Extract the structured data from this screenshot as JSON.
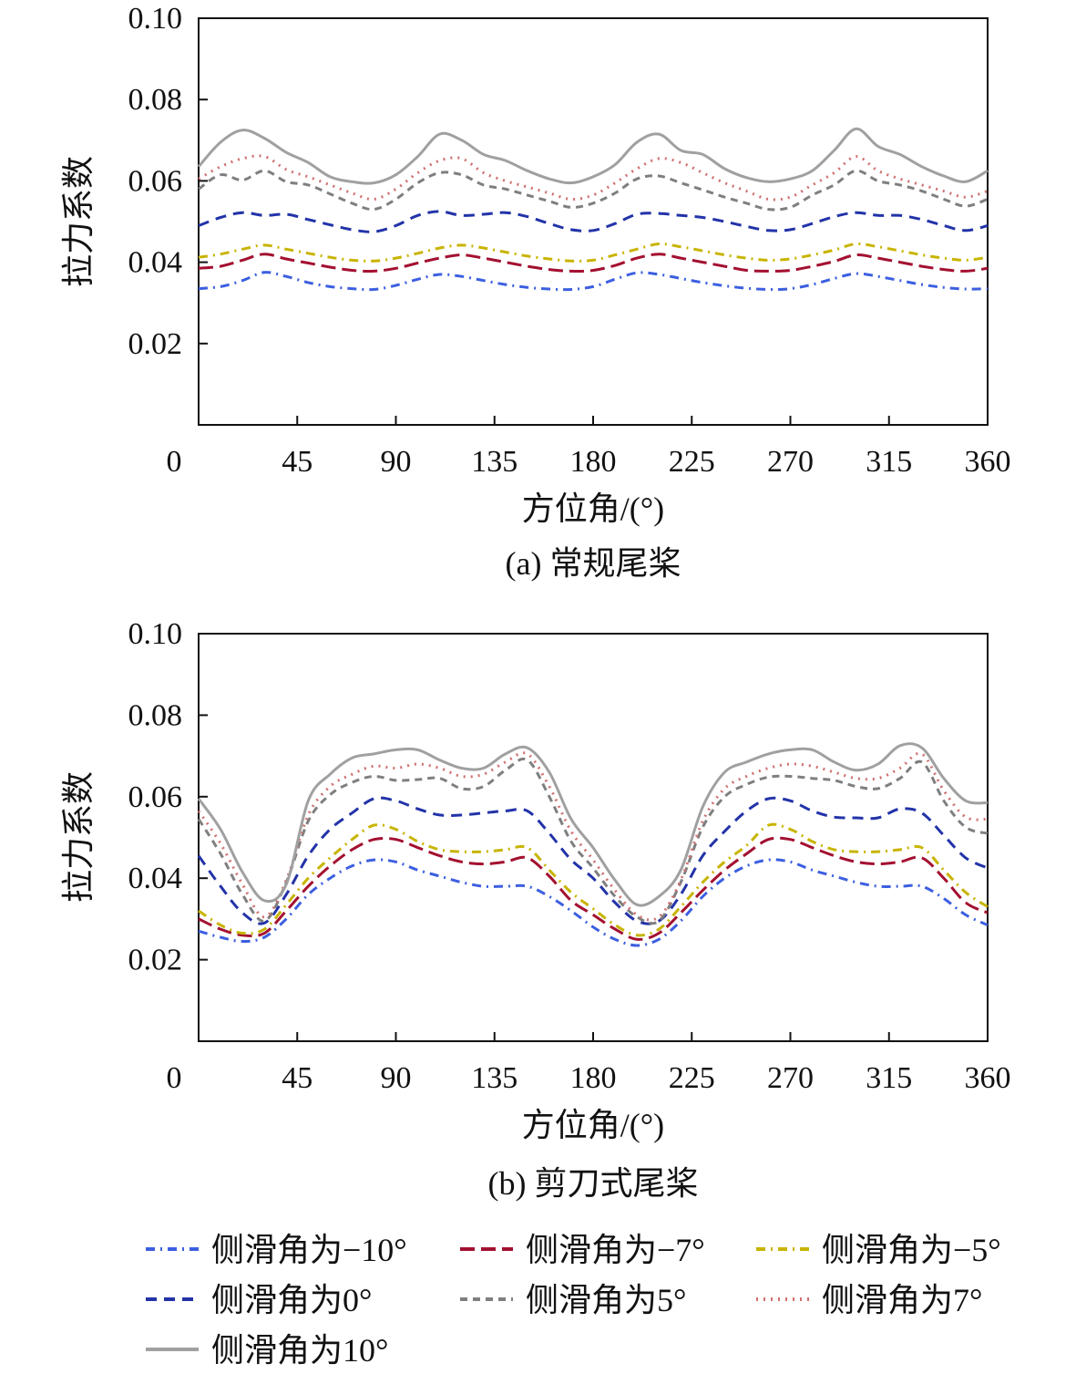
{
  "legend": {
    "entries": [
      "侧滑角为−10°",
      "侧滑角为−7°",
      "侧滑角为−5°",
      "侧滑角为0°",
      "侧滑角为5°",
      "侧滑角为7°",
      "侧滑角为10°"
    ],
    "colors": [
      "#3c5fe0",
      "#a31030",
      "#c8b400",
      "#2233a8",
      "#7f7f7f",
      "#d07070",
      "#a0a0a0"
    ],
    "dashes": [
      "10,6,2,6",
      "16,7",
      "10,6,2,6",
      "12,8",
      "8,6",
      "2,6",
      "none"
    ]
  },
  "chart_data": [
    {
      "type": "line",
      "caption": "(a) 常规尾桨",
      "xlabel": "方位角/(°)",
      "ylabel": "拉力系数",
      "xlim": [
        0,
        360
      ],
      "ylim": [
        0,
        0.1
      ],
      "xticks": [
        "0",
        "45",
        "90",
        "135",
        "180",
        "225",
        "270",
        "315",
        "360"
      ],
      "yticks": [
        "0.02",
        "0.04",
        "0.06",
        "0.08",
        "0.10"
      ],
      "x": [
        0,
        10,
        20,
        30,
        40,
        50,
        60,
        70,
        80,
        90,
        100,
        110,
        120,
        130,
        140,
        150,
        160,
        170,
        180,
        190,
        200,
        210,
        220,
        230,
        240,
        250,
        260,
        270,
        280,
        290,
        300,
        310,
        320,
        330,
        340,
        350,
        360
      ],
      "series": [
        {
          "name": "侧滑角为−10°",
          "values": [
            0.0335,
            0.034,
            0.0355,
            0.0375,
            0.0365,
            0.035,
            0.034,
            0.0335,
            0.0333,
            0.0343,
            0.0358,
            0.037,
            0.0365,
            0.0355,
            0.0345,
            0.0338,
            0.0334,
            0.0333,
            0.034,
            0.0358,
            0.0374,
            0.037,
            0.036,
            0.035,
            0.0342,
            0.0336,
            0.0333,
            0.0335,
            0.0345,
            0.036,
            0.0372,
            0.0365,
            0.0355,
            0.0345,
            0.0338,
            0.0334,
            0.0335
          ]
        },
        {
          "name": "侧滑角为−7°",
          "values": [
            0.0385,
            0.039,
            0.0405,
            0.042,
            0.0408,
            0.0398,
            0.0388,
            0.038,
            0.0378,
            0.0385,
            0.0398,
            0.041,
            0.0418,
            0.041,
            0.04,
            0.039,
            0.0382,
            0.0378,
            0.038,
            0.0392,
            0.041,
            0.042,
            0.041,
            0.04,
            0.039,
            0.038,
            0.0378,
            0.038,
            0.039,
            0.0402,
            0.0418,
            0.041,
            0.04,
            0.039,
            0.0382,
            0.0378,
            0.0385
          ]
        },
        {
          "name": "侧滑角为−5°",
          "values": [
            0.0412,
            0.042,
            0.0432,
            0.0442,
            0.0432,
            0.0422,
            0.0412,
            0.0405,
            0.0403,
            0.041,
            0.0422,
            0.0435,
            0.0442,
            0.0435,
            0.0425,
            0.0415,
            0.0408,
            0.0403,
            0.0405,
            0.0418,
            0.0432,
            0.0445,
            0.0438,
            0.0428,
            0.0418,
            0.041,
            0.0405,
            0.0408,
            0.0418,
            0.043,
            0.0445,
            0.0438,
            0.0428,
            0.0418,
            0.041,
            0.0405,
            0.0412
          ]
        },
        {
          "name": "侧滑角为0°",
          "values": [
            0.049,
            0.051,
            0.0522,
            0.0515,
            0.0518,
            0.0505,
            0.0492,
            0.048,
            0.0475,
            0.049,
            0.0515,
            0.0525,
            0.0515,
            0.0518,
            0.0522,
            0.0512,
            0.0495,
            0.048,
            0.0478,
            0.0495,
            0.0518,
            0.052,
            0.0515,
            0.051,
            0.05,
            0.0488,
            0.0478,
            0.048,
            0.0495,
            0.0512,
            0.0522,
            0.0515,
            0.0515,
            0.0505,
            0.049,
            0.0478,
            0.049
          ]
        },
        {
          "name": "侧滑角为5°",
          "values": [
            0.058,
            0.0615,
            0.0602,
            0.0625,
            0.0598,
            0.059,
            0.0568,
            0.0545,
            0.053,
            0.0555,
            0.0595,
            0.062,
            0.0615,
            0.059,
            0.058,
            0.0565,
            0.055,
            0.0535,
            0.0545,
            0.057,
            0.0605,
            0.0612,
            0.0595,
            0.0578,
            0.056,
            0.0545,
            0.053,
            0.0535,
            0.0565,
            0.059,
            0.0625,
            0.06,
            0.059,
            0.0575,
            0.0555,
            0.0538,
            0.0555
          ]
        },
        {
          "name": "侧滑角为7°",
          "values": [
            0.0605,
            0.0635,
            0.0655,
            0.066,
            0.0628,
            0.061,
            0.059,
            0.057,
            0.0555,
            0.058,
            0.062,
            0.065,
            0.0655,
            0.062,
            0.06,
            0.0585,
            0.057,
            0.0555,
            0.0565,
            0.0595,
            0.063,
            0.0655,
            0.0645,
            0.062,
            0.0595,
            0.0575,
            0.0555,
            0.056,
            0.059,
            0.062,
            0.066,
            0.0625,
            0.0605,
            0.059,
            0.0575,
            0.056,
            0.0575
          ]
        },
        {
          "name": "侧滑角为10°",
          "values": [
            0.0635,
            0.0695,
            0.0725,
            0.0705,
            0.067,
            0.0645,
            0.061,
            0.0598,
            0.0595,
            0.0615,
            0.066,
            0.0715,
            0.07,
            0.0665,
            0.065,
            0.0625,
            0.0605,
            0.0595,
            0.061,
            0.064,
            0.0695,
            0.0715,
            0.0675,
            0.0665,
            0.063,
            0.0608,
            0.0598,
            0.0605,
            0.0625,
            0.0675,
            0.0728,
            0.0685,
            0.0665,
            0.0635,
            0.0612,
            0.0598,
            0.0625
          ]
        }
      ]
    },
    {
      "type": "line",
      "caption": "(b) 剪刀式尾桨",
      "xlabel": "方位角/(°)",
      "ylabel": "拉力系数",
      "xlim": [
        0,
        360
      ],
      "ylim": [
        0,
        0.1
      ],
      "xticks": [
        "0",
        "45",
        "90",
        "135",
        "180",
        "225",
        "270",
        "315",
        "360"
      ],
      "yticks": [
        "0.02",
        "0.04",
        "0.06",
        "0.08",
        "0.10"
      ],
      "x": [
        0,
        10,
        20,
        30,
        40,
        50,
        60,
        70,
        80,
        90,
        100,
        110,
        120,
        130,
        140,
        150,
        160,
        170,
        180,
        190,
        200,
        210,
        220,
        230,
        240,
        250,
        260,
        270,
        280,
        290,
        300,
        310,
        320,
        330,
        340,
        350,
        360
      ],
      "series": [
        {
          "name": "侧滑角为−10°",
          "values": [
            0.027,
            0.0255,
            0.0245,
            0.0255,
            0.03,
            0.036,
            0.04,
            0.043,
            0.0445,
            0.044,
            0.042,
            0.0405,
            0.039,
            0.038,
            0.038,
            0.038,
            0.0355,
            0.032,
            0.028,
            0.025,
            0.0235,
            0.025,
            0.0295,
            0.0355,
            0.04,
            0.043,
            0.0445,
            0.044,
            0.042,
            0.0405,
            0.039,
            0.038,
            0.038,
            0.038,
            0.035,
            0.031,
            0.0285
          ]
        },
        {
          "name": "侧滑角为−7°",
          "values": [
            0.03,
            0.0275,
            0.026,
            0.0265,
            0.032,
            0.038,
            0.043,
            0.047,
            0.0495,
            0.0495,
            0.0475,
            0.0455,
            0.044,
            0.0435,
            0.044,
            0.045,
            0.0405,
            0.0345,
            0.031,
            0.0275,
            0.025,
            0.0265,
            0.0315,
            0.037,
            0.042,
            0.046,
            0.0495,
            0.0495,
            0.0475,
            0.0455,
            0.044,
            0.0435,
            0.044,
            0.045,
            0.04,
            0.034,
            0.0315
          ]
        },
        {
          "name": "侧滑角为−5°",
          "values": [
            0.032,
            0.0285,
            0.0265,
            0.0275,
            0.0335,
            0.04,
            0.045,
            0.0495,
            0.053,
            0.052,
            0.049,
            0.047,
            0.0465,
            0.0465,
            0.047,
            0.0475,
            0.042,
            0.0365,
            0.0325,
            0.0285,
            0.026,
            0.0275,
            0.033,
            0.039,
            0.044,
            0.048,
            0.053,
            0.052,
            0.049,
            0.047,
            0.0465,
            0.0465,
            0.047,
            0.0475,
            0.042,
            0.0365,
            0.033
          ]
        },
        {
          "name": "侧滑角为0°",
          "values": [
            0.0455,
            0.038,
            0.0315,
            0.029,
            0.036,
            0.0455,
            0.052,
            0.056,
            0.0595,
            0.059,
            0.057,
            0.0555,
            0.0555,
            0.056,
            0.0565,
            0.0565,
            0.051,
            0.0445,
            0.04,
            0.034,
            0.0295,
            0.0295,
            0.036,
            0.0455,
            0.0515,
            0.0565,
            0.0595,
            0.059,
            0.0565,
            0.055,
            0.0548,
            0.0548,
            0.057,
            0.056,
            0.0505,
            0.045,
            0.0425
          ]
        },
        {
          "name": "侧滑角为5°",
          "values": [
            0.0545,
            0.046,
            0.036,
            0.0295,
            0.039,
            0.054,
            0.0605,
            0.0635,
            0.065,
            0.064,
            0.0642,
            0.0645,
            0.062,
            0.0625,
            0.0665,
            0.069,
            0.06,
            0.049,
            0.0425,
            0.0355,
            0.0305,
            0.0295,
            0.039,
            0.0525,
            0.06,
            0.063,
            0.0648,
            0.065,
            0.0645,
            0.064,
            0.0625,
            0.062,
            0.0645,
            0.0685,
            0.059,
            0.0525,
            0.051
          ]
        },
        {
          "name": "侧滑角为7°",
          "values": [
            0.0565,
            0.0485,
            0.0385,
            0.0305,
            0.0395,
            0.0555,
            0.0625,
            0.0655,
            0.0675,
            0.067,
            0.068,
            0.067,
            0.065,
            0.0655,
            0.0685,
            0.0705,
            0.0625,
            0.0515,
            0.0445,
            0.037,
            0.031,
            0.0305,
            0.0395,
            0.054,
            0.062,
            0.065,
            0.067,
            0.068,
            0.0675,
            0.066,
            0.0645,
            0.0645,
            0.067,
            0.0705,
            0.0615,
            0.055,
            0.0545
          ]
        },
        {
          "name": "侧滑角为10°",
          "values": [
            0.0595,
            0.052,
            0.0415,
            0.0345,
            0.0385,
            0.059,
            0.0655,
            0.0695,
            0.0705,
            0.0715,
            0.0715,
            0.069,
            0.067,
            0.067,
            0.0705,
            0.072,
            0.066,
            0.0545,
            0.0475,
            0.0395,
            0.0335,
            0.0355,
            0.042,
            0.0575,
            0.066,
            0.0685,
            0.0705,
            0.0715,
            0.0715,
            0.0685,
            0.0665,
            0.068,
            0.0725,
            0.072,
            0.0645,
            0.059,
            0.0585
          ]
        }
      ]
    }
  ]
}
